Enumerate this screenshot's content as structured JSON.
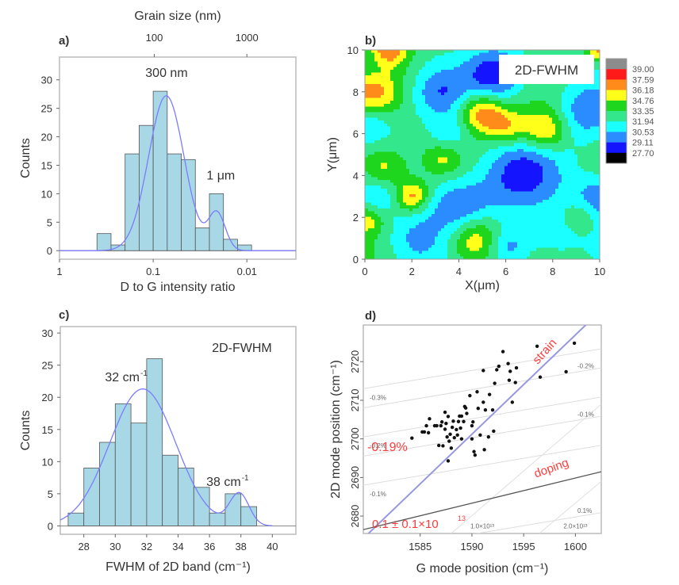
{
  "chart_data": [
    {
      "panel": "a)",
      "type": "bar",
      "title": "",
      "xlabel": "D to G intensity ratio",
      "ylabel": "Counts",
      "top_xlabel": "Grain size (nm)",
      "x_scale": "log-reversed",
      "xlim": [
        1,
        0.003
      ],
      "ylim": [
        -1.5,
        34
      ],
      "xticks": [
        {
          "v": 1,
          "label": "1"
        },
        {
          "v": 0.1,
          "label": "0.1"
        },
        {
          "v": 0.01,
          "label": "0.01"
        }
      ],
      "top_xticks": [
        {
          "v": 0.0974,
          "label": "100"
        },
        {
          "v": 0.01,
          "label": "1000"
        }
      ],
      "yticks": [
        0,
        5,
        10,
        15,
        20,
        25,
        30
      ],
      "bin_edges_log10": [
        -0.4,
        -0.55,
        -0.7,
        -0.85,
        -1.0,
        -1.15,
        -1.3,
        -1.45,
        -1.6,
        -1.75,
        -1.9,
        -2.05
      ],
      "values": [
        3,
        1,
        17,
        22,
        28,
        17,
        16,
        4,
        10,
        2,
        1
      ],
      "fit_curve": {
        "name": "fit",
        "color": "#7b7bff",
        "components": [
          {
            "mu": -1.14,
            "sigma": 0.19,
            "amp": 27.2
          },
          {
            "mu": -1.68,
            "sigma": 0.09,
            "amp": 6.5
          }
        ]
      },
      "annotations": [
        {
          "text": "300 nm",
          "x": 0.072,
          "y": 30.5
        },
        {
          "text": "1 μm",
          "x": 0.019,
          "y": 12.5
        }
      ],
      "bar_color": "#a8d8e6"
    },
    {
      "panel": "b)",
      "type": "heatmap",
      "title": "2D-FWHM",
      "xlabel": "X(μm)",
      "ylabel": "Y(μm)",
      "xlim": [
        0,
        10
      ],
      "ylim": [
        0,
        10
      ],
      "xticks": [
        0,
        2,
        4,
        6,
        8,
        10
      ],
      "yticks": [
        0,
        2,
        4,
        6,
        8,
        10
      ],
      "colorbar": {
        "levels": [
          "39.00",
          "37.59",
          "36.18",
          "34.76",
          "33.35",
          "31.94",
          "30.53",
          "29.11",
          "27.70"
        ],
        "colors": [
          "#8c8c8c",
          "#ff1a1a",
          "#ff8c1a",
          "#ffff1a",
          "#1fd61f",
          "#33e88c",
          "#1affff",
          "#2b8cff",
          "#1414ff",
          "#000000"
        ]
      },
      "base_value": 32.6,
      "features": [
        {
          "x": 5.6,
          "y": 8.8,
          "v": 27.9,
          "r": 0.9
        },
        {
          "x": 3.2,
          "y": 7.9,
          "v": 30.0,
          "r": 0.8
        },
        {
          "x": 6.6,
          "y": 4.0,
          "v": 29.0,
          "r": 1.2
        },
        {
          "x": 4.0,
          "y": 2.6,
          "v": 29.2,
          "r": 1.0
        },
        {
          "x": 6.1,
          "y": 0.6,
          "v": 29.3,
          "r": 0.7
        },
        {
          "x": 2.0,
          "y": 0.9,
          "v": 30.3,
          "r": 0.9
        },
        {
          "x": 9.3,
          "y": 7.0,
          "v": 29.6,
          "r": 1.0
        },
        {
          "x": 10.0,
          "y": 3.0,
          "v": 29.4,
          "r": 0.8
        },
        {
          "x": 0.2,
          "y": 6.6,
          "v": 30.5,
          "r": 0.7
        },
        {
          "x": 0.3,
          "y": 9.2,
          "v": 31.0,
          "r": 0.7
        },
        {
          "x": 0.5,
          "y": 2.9,
          "v": 30.8,
          "r": 0.7
        },
        {
          "x": 8.0,
          "y": 1.2,
          "v": 30.5,
          "r": 0.8
        },
        {
          "x": 3.6,
          "y": 6.0,
          "v": 30.6,
          "r": 0.6
        },
        {
          "x": 5.0,
          "y": 7.0,
          "v": 37.2,
          "r": 0.7
        },
        {
          "x": 6.0,
          "y": 6.3,
          "v": 35.8,
          "r": 0.6
        },
        {
          "x": 7.7,
          "y": 6.2,
          "v": 37.0,
          "r": 0.7
        },
        {
          "x": 0.7,
          "y": 4.4,
          "v": 36.0,
          "r": 0.7
        },
        {
          "x": 0.3,
          "y": 8.0,
          "v": 36.4,
          "r": 0.8
        },
        {
          "x": 2.0,
          "y": 3.0,
          "v": 37.0,
          "r": 0.5
        },
        {
          "x": 4.7,
          "y": 0.9,
          "v": 37.0,
          "r": 0.8
        },
        {
          "x": 1.0,
          "y": 10.0,
          "v": 37.5,
          "r": 0.6
        },
        {
          "x": 0.1,
          "y": 1.9,
          "v": 35.5,
          "r": 0.5
        },
        {
          "x": 3.3,
          "y": 4.8,
          "v": 34.5,
          "r": 0.5
        },
        {
          "x": 9.1,
          "y": 2.0,
          "v": 34.3,
          "r": 0.5
        },
        {
          "x": 10.0,
          "y": 10.0,
          "v": 37.0,
          "r": 0.4
        }
      ]
    },
    {
      "panel": "c)",
      "type": "bar",
      "title": "2D-FWHM",
      "xlabel": "FWHM of 2D band (cm⁻¹)",
      "ylabel": "Counts",
      "xlim": [
        26.5,
        41.5
      ],
      "ylim": [
        -1.3,
        31
      ],
      "xticks": [
        28,
        30,
        32,
        34,
        36,
        38,
        40
      ],
      "yticks": [
        0,
        5,
        10,
        15,
        20,
        25,
        30
      ],
      "bin_edges": [
        27,
        28,
        29,
        30,
        31,
        32,
        33,
        34,
        35,
        36,
        37,
        38,
        39
      ],
      "values": [
        2,
        9,
        13,
        19,
        16,
        26,
        11,
        9,
        6,
        2,
        5,
        3
      ],
      "fit_curve": {
        "name": "fit",
        "color": "#7b7bff",
        "components": [
          {
            "mu": 31.75,
            "sigma": 2.1,
            "amp": 21.3
          },
          {
            "mu": 37.9,
            "sigma": 0.62,
            "amp": 4.9
          }
        ]
      },
      "annotations": [
        {
          "text": "32 cm",
          "sup": "-1",
          "x": 31.55,
          "y": 22.5
        },
        {
          "text": "38 cm",
          "sup": "-1",
          "x": 38.0,
          "y": 6.2
        }
      ],
      "bar_color": "#a8d8e6"
    },
    {
      "panel": "d)",
      "type": "scatter",
      "title": "",
      "xlabel": "G mode position (cm⁻¹)",
      "ylabel": "2D mode position (cm⁻¹)",
      "xlim": [
        1579.5,
        1602.5
      ],
      "ylim": [
        2675.5,
        2729.5
      ],
      "xticks": [
        1585,
        1590,
        1595,
        1600
      ],
      "yticks": [
        2680,
        2690,
        2700,
        2710,
        2720
      ],
      "lines": [
        {
          "name": "strain",
          "color": "#9898e0",
          "p1": [
            1580,
            2675.5
          ],
          "p2": [
            1601,
            2729.5
          ],
          "label": "strain"
        },
        {
          "name": "doping",
          "color": "#555555",
          "p1": [
            1579.5,
            2676.5
          ],
          "p2": [
            1602.5,
            2691.5
          ],
          "label": "doping"
        }
      ],
      "iso_strain_lines": [
        {
          "label": "-0.3%",
          "y0": 2713,
          "slope": 0.45
        },
        {
          "label": "-0.2%",
          "y0": 2700.5,
          "slope": 0.45
        },
        {
          "label": "-0.1%",
          "y0": 2688,
          "slope": 0.45
        },
        {
          "label": "-0.2%",
          "y0": 2717.5,
          "slope": 0.45,
          "right": true
        },
        {
          "label": "-0.1%",
          "y0": 2705,
          "slope": 0.45,
          "right": true
        },
        {
          "label": "0.1%",
          "y0": 2680,
          "slope": 0.45,
          "right": true
        }
      ],
      "iso_doping_labels": [
        {
          "text": "1.0×10¹³",
          "x": 1591
        },
        {
          "text": "2.0×10¹³",
          "x": 1600
        }
      ],
      "annotations": [
        {
          "text": "-0.19%",
          "color": "#ff3b3b"
        },
        {
          "text": "0.1 ± 0.1×10",
          "sup": "13",
          "color": "#ff3b3b"
        }
      ],
      "points": [
        [
          1584.2,
          2700.2
        ],
        [
          1585.2,
          2701.8
        ],
        [
          1585.4,
          2701.8
        ],
        [
          1585.6,
          2703.4
        ],
        [
          1585.8,
          2701.6
        ],
        [
          1585.9,
          2705.2
        ],
        [
          1586.4,
          2703.4
        ],
        [
          1586.6,
          2703.4
        ],
        [
          1586.8,
          2698.3
        ],
        [
          1587.0,
          2703.4
        ],
        [
          1587.1,
          2704.4
        ],
        [
          1587.2,
          2698.2
        ],
        [
          1587.4,
          2702.5
        ],
        [
          1587.5,
          2704.0
        ],
        [
          1587.6,
          2700.5
        ],
        [
          1587.4,
          2706.9
        ],
        [
          1587.7,
          2705.8
        ],
        [
          1587.8,
          2699.4
        ],
        [
          1587.9,
          2701.2
        ],
        [
          1587.7,
          2694.3
        ],
        [
          1588.0,
          2697.6
        ],
        [
          1588.1,
          2703.0
        ],
        [
          1588.2,
          2704.6
        ],
        [
          1588.3,
          2700.3
        ],
        [
          1588.5,
          2702.4
        ],
        [
          1588.6,
          2701.0
        ],
        [
          1588.7,
          2704.5
        ],
        [
          1588.8,
          2705.9
        ],
        [
          1588.9,
          2702.8
        ],
        [
          1589.0,
          2700.0
        ],
        [
          1589.0,
          2705.9
        ],
        [
          1589.2,
          2704.5
        ],
        [
          1589.3,
          2708.4
        ],
        [
          1589.5,
          2706.6
        ],
        [
          1589.8,
          2711.2
        ],
        [
          1589.4,
          2708.0
        ],
        [
          1590.0,
          2703.4
        ],
        [
          1590.0,
          2700.0
        ],
        [
          1590.1,
          2704.4
        ],
        [
          1590.3,
          2695.8
        ],
        [
          1590.2,
          2696.7
        ],
        [
          1590.5,
          2712.2
        ],
        [
          1590.6,
          2707.9
        ],
        [
          1590.8,
          2701.0
        ],
        [
          1591.1,
          2709.5
        ],
        [
          1591.1,
          2717.7
        ],
        [
          1591.2,
          2697.2
        ],
        [
          1591.3,
          2707.5
        ],
        [
          1591.6,
          2700.5
        ],
        [
          1591.7,
          2711.5
        ],
        [
          1592.0,
          2707.5
        ],
        [
          1592.1,
          2702.0
        ],
        [
          1592.2,
          2714.4
        ],
        [
          1592.4,
          2717.9
        ],
        [
          1592.6,
          2718.8
        ],
        [
          1593.0,
          2722.6
        ],
        [
          1593.5,
          2719.5
        ],
        [
          1593.6,
          2715.2
        ],
        [
          1593.7,
          2717.5
        ],
        [
          1593.9,
          2709.5
        ],
        [
          1594.2,
          2714.6
        ],
        [
          1594.3,
          2718.4
        ],
        [
          1596.3,
          2724.0
        ],
        [
          1596.6,
          2716.0
        ],
        [
          1599.1,
          2717.4
        ],
        [
          1599.9,
          2724.8
        ]
      ]
    }
  ]
}
